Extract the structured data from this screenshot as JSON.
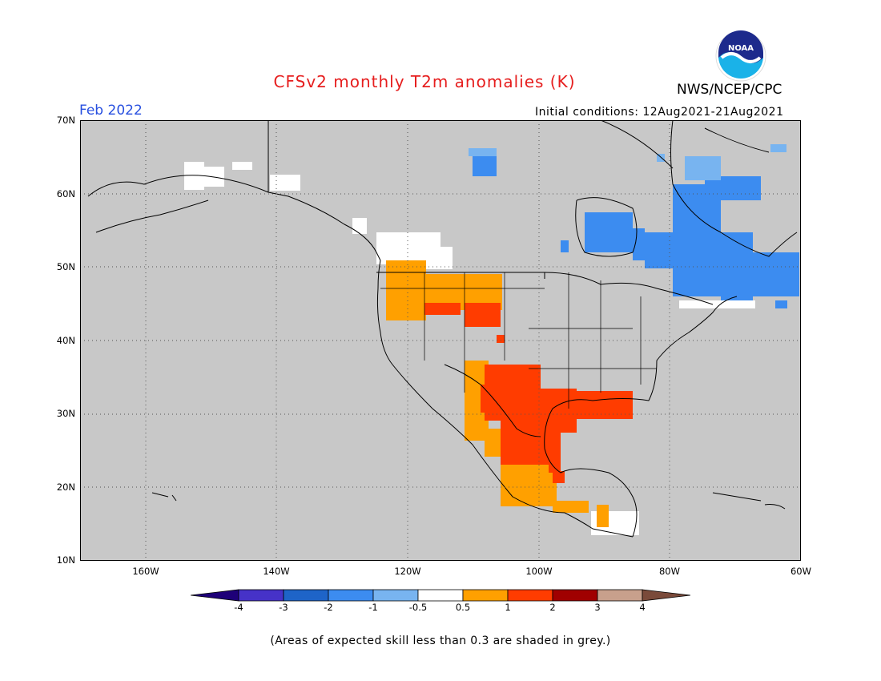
{
  "title": "CFSv2 monthly T2m anomalies (K)",
  "agency": "NWS/NCEP/CPC",
  "logo_text": "NOAA",
  "valid_month": "Feb 2022",
  "initial_conditions": "Initial conditions: 12Aug2021-21Aug2021",
  "map": {
    "projection": "latitude-longitude",
    "lon_range": [
      -172,
      -60
    ],
    "lat_range": [
      10,
      70
    ],
    "gridlines": "dotted",
    "background_color": "#c8c8c8",
    "lat_ticks": [
      "10N",
      "20N",
      "30N",
      "40N",
      "50N",
      "60N",
      "70N"
    ],
    "lon_ticks": [
      "160W",
      "140W",
      "120W",
      "100W",
      "80W",
      "60W"
    ],
    "regions": [
      {
        "name": "Pacific Northwest warm",
        "category": "0.5 to 1",
        "color": "#ffa000"
      },
      {
        "name": "Northern Rockies warm",
        "category": "1 to 2",
        "color": "#ff3c00"
      },
      {
        "name": "Southern Plains and Gulf Coast warm",
        "category": "1 to 2",
        "color": "#ff3c00"
      },
      {
        "name": "Northwest Mexico warm",
        "category": "0.5 to 1",
        "color": "#ffa000"
      },
      {
        "name": "Central America warm",
        "category": "0.5 to 1",
        "color": "#ffa000"
      },
      {
        "name": "Eastern Canada cool",
        "category": "-2 to -1",
        "color": "#3c8cf0"
      },
      {
        "name": "Baffin region cool",
        "category": "-1 to -0.5",
        "color": "#78b4f0"
      },
      {
        "name": "Alaska and BC near normal",
        "category": "-0.5 to 0.5",
        "color": "#ffffff"
      }
    ]
  },
  "colorbar": {
    "labels": [
      "-4",
      "-3",
      "-2",
      "-1",
      "-0.5",
      "0.5",
      "1",
      "2",
      "3",
      "4"
    ],
    "colors": [
      "#1e0078",
      "#4632c8",
      "#1e64c8",
      "#3c8cf0",
      "#78b4f0",
      "#ffffff",
      "#ffa000",
      "#ff3c00",
      "#a00000",
      "#c8a08c",
      "#7a4a3a"
    ]
  },
  "footnote": "(Areas of expected skill less than 0.3 are shaded in grey.)"
}
